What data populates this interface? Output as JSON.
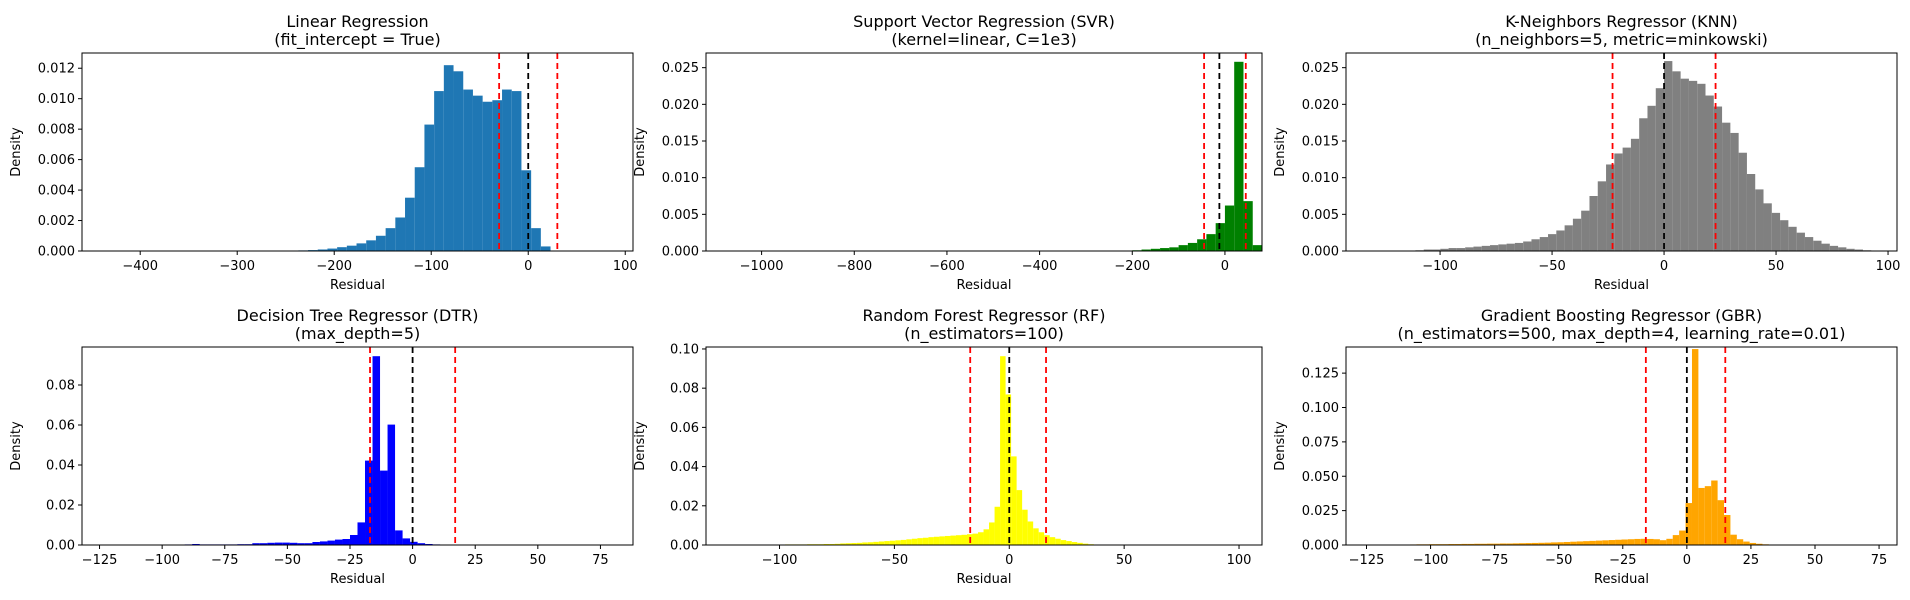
{
  "chart_data": [
    {
      "type": "bar",
      "title": "Linear Regression",
      "subtitle": "(fit_intercept = True)",
      "xlabel": "Residual",
      "ylabel": "Density",
      "color": "#1f77b4",
      "xlim": [
        -460,
        108
      ],
      "ylim": [
        0,
        0.013
      ],
      "xticks": [
        -400,
        -300,
        -200,
        -100,
        0,
        100
      ],
      "xtick_labels": [
        "−400",
        "−300",
        "−200",
        "−100",
        "0",
        "100"
      ],
      "yticks": [
        0,
        0.002,
        0.004,
        0.006,
        0.008,
        0.01,
        0.012
      ],
      "ytick_labels": [
        "0.000",
        "0.002",
        "0.004",
        "0.006",
        "0.008",
        "0.010",
        "0.012"
      ],
      "bins": {
        "start": -437,
        "width": 10
      },
      "values": [
        0,
        0,
        0,
        0,
        0,
        0,
        0,
        0,
        0,
        0,
        0,
        0,
        0,
        0,
        0,
        0,
        0,
        0,
        1e-05,
        2e-05,
        4e-05,
        6e-05,
        0.0001,
        0.00016,
        0.00025,
        0.00035,
        0.0005,
        0.0007,
        0.001,
        0.0015,
        0.0022,
        0.0035,
        0.0055,
        0.0083,
        0.0105,
        0.0122,
        0.0118,
        0.0106,
        0.0102,
        0.0098,
        0.0099,
        0.0106,
        0.0105,
        0.0053,
        0.0015,
        0.0003
      ],
      "vlines": [
        {
          "x": -30,
          "color": "#ff0000",
          "style": "dashed"
        },
        {
          "x": 0,
          "color": "#000000",
          "style": "dashed"
        },
        {
          "x": 30,
          "color": "#ff0000",
          "style": "dashed"
        }
      ]
    },
    {
      "type": "bar",
      "title": "Support Vector Regression (SVR)",
      "subtitle": "(kernel=linear, C=1e3)",
      "xlabel": "Residual",
      "ylabel": "Density",
      "color": "#008000",
      "xlim": [
        -1120,
        80
      ],
      "ylim": [
        0,
        0.027
      ],
      "xticks": [
        -1000,
        -800,
        -600,
        -400,
        -200,
        0
      ],
      "xtick_labels": [
        "−1000",
        "−800",
        "−600",
        "−400",
        "−200",
        "0"
      ],
      "yticks": [
        0,
        0.005,
        0.01,
        0.015,
        0.02,
        0.025
      ],
      "ytick_labels": [
        "0.000",
        "0.005",
        "0.010",
        "0.015",
        "0.020",
        "0.025"
      ],
      "bins": {
        "start": -1080,
        "width": 20
      },
      "values": [
        0,
        0,
        0,
        0,
        0,
        0,
        0,
        0,
        0,
        0,
        0,
        0,
        0,
        0,
        0,
        0,
        0,
        0,
        0,
        0,
        0,
        0,
        0,
        0,
        0,
        0,
        0,
        0,
        0,
        0,
        0,
        0,
        0,
        0,
        0,
        0,
        0,
        0,
        0,
        0,
        0,
        0,
        0,
        0,
        0.0001,
        0.0002,
        0.0003,
        0.0004,
        0.0005,
        0.0008,
        0.0011,
        0.0016,
        0.0023,
        0.0038,
        0.0062,
        0.0258,
        0.0068,
        0.0008
      ],
      "vlines": [
        {
          "x": -45,
          "color": "#ff0000",
          "style": "dashed"
        },
        {
          "x": -12,
          "color": "#000000",
          "style": "dashed"
        },
        {
          "x": 45,
          "color": "#ff0000",
          "style": "dashed"
        }
      ]
    },
    {
      "type": "bar",
      "title": "K-Neighbors Regressor (KNN)",
      "subtitle": "(n_neighbors=5, metric=minkowski)",
      "xlabel": "Residual",
      "ylabel": "Density",
      "color": "#808080",
      "xlim": [
        -142,
        104
      ],
      "ylim": [
        0,
        0.027
      ],
      "xticks": [
        -100,
        -50,
        0,
        50,
        100
      ],
      "xtick_labels": [
        "−100",
        "−50",
        "0",
        "50",
        "100"
      ],
      "yticks": [
        0,
        0.005,
        0.01,
        0.015,
        0.02,
        0.025
      ],
      "ytick_labels": [
        "0.000",
        "0.005",
        "0.010",
        "0.015",
        "0.020",
        "0.025"
      ],
      "bins": {
        "start": -111,
        "width": 3.7
      },
      "values": [
        0.0001,
        0.0002,
        0.0002,
        0.0003,
        0.0004,
        0.0004,
        0.0005,
        0.0006,
        0.0007,
        0.0008,
        0.0009,
        0.001,
        0.0011,
        0.0013,
        0.0016,
        0.0019,
        0.0023,
        0.0028,
        0.0035,
        0.0044,
        0.0055,
        0.0075,
        0.0095,
        0.0118,
        0.0133,
        0.0141,
        0.0153,
        0.0181,
        0.0198,
        0.0222,
        0.0259,
        0.0245,
        0.0235,
        0.0232,
        0.0228,
        0.0212,
        0.0197,
        0.0175,
        0.0161,
        0.0134,
        0.0105,
        0.0084,
        0.0065,
        0.0052,
        0.0042,
        0.0033,
        0.0025,
        0.0019,
        0.0014,
        0.001,
        0.0007,
        0.0005,
        0.0003,
        0.0002,
        0.0001
      ],
      "vlines": [
        {
          "x": -23,
          "color": "#ff0000",
          "style": "dashed"
        },
        {
          "x": 0,
          "color": "#000000",
          "style": "dashed"
        },
        {
          "x": 23,
          "color": "#ff0000",
          "style": "dashed"
        }
      ]
    },
    {
      "type": "bar",
      "title": "Decision Tree Regressor (DTR)",
      "subtitle": "(max_depth=5)",
      "xlabel": "Residual",
      "ylabel": "Density",
      "color": "#0000ff",
      "xlim": [
        -132,
        88
      ],
      "ylim": [
        0,
        0.099
      ],
      "xticks": [
        -125,
        -100,
        -75,
        -50,
        -25,
        0,
        25,
        50,
        75
      ],
      "xtick_labels": [
        "−125",
        "−100",
        "−75",
        "−50",
        "−25",
        "0",
        "25",
        "50",
        "75"
      ],
      "yticks": [
        0,
        0.02,
        0.04,
        0.06,
        0.08
      ],
      "ytick_labels": [
        "0.00",
        "0.02",
        "0.04",
        "0.06",
        "0.08"
      ],
      "bins": {
        "start": -124,
        "width": 3
      },
      "values": [
        0.0002,
        0.0002,
        0.0002,
        0.0002,
        0.0002,
        0.0002,
        0.0002,
        0.0002,
        0.0002,
        0.0002,
        0.0002,
        0.0003,
        0.0005,
        0.0003,
        0.0003,
        0.0003,
        0.0003,
        0.0003,
        0.0004,
        0.0004,
        0.0009,
        0.0009,
        0.0011,
        0.0012,
        0.0012,
        0.0011,
        0.0009,
        0.0009,
        0.0015,
        0.0018,
        0.0022,
        0.0027,
        0.003,
        0.005,
        0.0113,
        0.0422,
        0.0944,
        0.0372,
        0.0602,
        0.0073,
        0.0033,
        0.0016,
        0.0009,
        0.0005,
        0.0003,
        0.0002
      ],
      "vlines": [
        {
          "x": -17,
          "color": "#ff0000",
          "style": "dashed"
        },
        {
          "x": 0,
          "color": "#000000",
          "style": "dashed"
        },
        {
          "x": 17,
          "color": "#ff0000",
          "style": "dashed"
        }
      ]
    },
    {
      "type": "bar",
      "title": "Random Forest Regressor (RF)",
      "subtitle": "(n_estimators=100)",
      "xlabel": "Residual",
      "ylabel": "Density",
      "color": "#ffff00",
      "xlim": [
        -132,
        110
      ],
      "ylim": [
        0,
        0.101
      ],
      "xticks": [
        -100,
        -50,
        0,
        50,
        100
      ],
      "xtick_labels": [
        "−100",
        "−50",
        "0",
        "50",
        "100"
      ],
      "yticks": [
        0,
        0.02,
        0.04,
        0.06,
        0.08,
        0.1
      ],
      "ytick_labels": [
        "0.00",
        "0.02",
        "0.04",
        "0.06",
        "0.08",
        "0.10"
      ],
      "bins": {
        "start": -112,
        "width": 2.4
      },
      "values": [
        0.0001,
        0.0002,
        0.0002,
        0.0002,
        0.0002,
        0.0002,
        0.0003,
        0.0003,
        0.0003,
        0.0003,
        0.0004,
        0.0004,
        0.0004,
        0.0005,
        0.0005,
        0.0006,
        0.0008,
        0.0009,
        0.001,
        0.0011,
        0.0013,
        0.0014,
        0.0016,
        0.0018,
        0.002,
        0.0022,
        0.0024,
        0.0026,
        0.0029,
        0.0032,
        0.0035,
        0.0037,
        0.004,
        0.0042,
        0.0044,
        0.0046,
        0.0048,
        0.005,
        0.0052,
        0.0055,
        0.0058,
        0.0065,
        0.008,
        0.0115,
        0.0195,
        0.0963,
        0.0768,
        0.0452,
        0.028,
        0.018,
        0.012,
        0.0085,
        0.0065,
        0.005,
        0.004,
        0.0032,
        0.0025,
        0.002,
        0.0015,
        0.0011,
        0.0007,
        0.0004
      ],
      "vlines": [
        {
          "x": -17,
          "color": "#ff0000",
          "style": "dashed"
        },
        {
          "x": 0,
          "color": "#000000",
          "style": "dashed"
        },
        {
          "x": 16,
          "color": "#ff0000",
          "style": "dashed"
        }
      ]
    },
    {
      "type": "bar",
      "title": "Gradient Boosting Regressor (GBR)",
      "subtitle": "(n_estimators=500, max_depth=4, learning_rate=0.01)",
      "xlabel": "Residual",
      "ylabel": "Density",
      "color": "#ffa500",
      "xlim": [
        -133,
        82
      ],
      "ylim": [
        0,
        0.144
      ],
      "xticks": [
        -125,
        -100,
        -75,
        -50,
        -25,
        0,
        25,
        50,
        75
      ],
      "xtick_labels": [
        "−125",
        "−100",
        "−75",
        "−50",
        "−25",
        "0",
        "25",
        "50",
        "75"
      ],
      "yticks": [
        0,
        0.025,
        0.05,
        0.075,
        0.1,
        0.125
      ],
      "ytick_labels": [
        "0.000",
        "0.025",
        "0.050",
        "0.075",
        "0.100",
        "0.125"
      ],
      "bins": {
        "start": -108,
        "width": 2.5
      },
      "values": [
        0.0004,
        0.0005,
        0.0005,
        0.0006,
        0.0006,
        0.0006,
        0.0007,
        0.0007,
        0.0008,
        0.0008,
        0.0009,
        0.0009,
        0.001,
        0.001,
        0.0011,
        0.0011,
        0.0012,
        0.0013,
        0.0014,
        0.0015,
        0.0016,
        0.0017,
        0.0019,
        0.002,
        0.0022,
        0.0024,
        0.0026,
        0.0028,
        0.003,
        0.0032,
        0.0034,
        0.0036,
        0.0038,
        0.004,
        0.0042,
        0.0044,
        0.0045,
        0.0044,
        0.0042,
        0.0035,
        0.0045,
        0.0072,
        0.0105,
        0.0305,
        0.1425,
        0.0415,
        0.0428,
        0.0469,
        0.0326,
        0.0218,
        0.0075,
        0.0042,
        0.0025,
        0.0015,
        0.0009,
        0.0005
      ],
      "vlines": [
        {
          "x": -16,
          "color": "#ff0000",
          "style": "dashed"
        },
        {
          "x": 0,
          "color": "#000000",
          "style": "dashed"
        },
        {
          "x": 15,
          "color": "#ff0000",
          "style": "dashed"
        }
      ]
    }
  ]
}
